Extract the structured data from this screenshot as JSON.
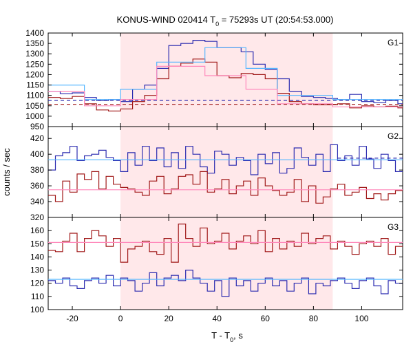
{
  "chart_data": {
    "type": "line",
    "title": "KONUS-WIND 020414 T",
    "title_sub": "0",
    "title_rest": " = 75293s UT (20:54:53.000)",
    "xlabel": "T - T",
    "xlabel_sub": "0",
    "xlabel_rest": ", s",
    "ylabel": "counts / sec",
    "xlim": [
      -30,
      117
    ],
    "xticks": [
      -20,
      0,
      20,
      40,
      60,
      80,
      100
    ],
    "highlight_interval": [
      0,
      88
    ],
    "colors": {
      "blue": "#2b2bb0",
      "red": "#a01818",
      "lightblue": "#55b6ff",
      "pink": "#ff88bb",
      "band": "#ffe8ea"
    },
    "panels": [
      {
        "label": "G1",
        "ylim": [
          950,
          1400
        ],
        "yticks": [
          950,
          1000,
          1050,
          1100,
          1150,
          1200,
          1250,
          1300,
          1350,
          1400
        ],
        "series": [
          {
            "color_key": "blue",
            "style": "step",
            "x": [
              -30,
              -25,
              -20,
              -15,
              -10,
              -5,
              0,
              5,
              10,
              15,
              20,
              25,
              30,
              35,
              40,
              45,
              50,
              55,
              60,
              65,
              70,
              75,
              80,
              85,
              90,
              95,
              100,
              105,
              110,
              115,
              117
            ],
            "y": [
              1120,
              1108,
              1112,
              1090,
              1075,
              1080,
              1070,
              1130,
              1150,
              1230,
              1340,
              1350,
              1365,
              1360,
              1330,
              1330,
              1310,
              1250,
              1225,
              1180,
              1120,
              1095,
              1090,
              1085,
              1080,
              1105,
              1070,
              1065,
              1075,
              1060,
              1060
            ]
          },
          {
            "color_key": "red",
            "style": "step",
            "x": [
              -30,
              -25,
              -20,
              -15,
              -10,
              -5,
              0,
              5,
              10,
              15,
              20,
              25,
              30,
              35,
              40,
              45,
              50,
              55,
              60,
              65,
              70,
              75,
              80,
              85,
              90,
              95,
              100,
              105,
              110,
              115,
              117
            ],
            "y": [
              1090,
              1085,
              1095,
              1060,
              1030,
              1025,
              1035,
              1070,
              1100,
              1180,
              1240,
              1255,
              1275,
              1260,
              1195,
              1185,
              1205,
              1200,
              1180,
              1110,
              1070,
              1060,
              1055,
              1055,
              1060,
              1040,
              1050,
              1045,
              1048,
              1040,
              1040
            ]
          },
          {
            "color_key": "lightblue",
            "style": "step",
            "x": [
              -30,
              -15,
              0,
              15,
              35,
              52,
              65,
              88,
              117
            ],
            "y": [
              1150,
              1080,
              1130,
              1260,
              1330,
              1230,
              1100,
              1080,
              1080
            ]
          },
          {
            "color_key": "pink",
            "style": "step",
            "x": [
              -30,
              -15,
              0,
              15,
              35,
              52,
              65,
              88,
              117
            ],
            "y": [
              1120,
              1050,
              1080,
              1240,
              1195,
              1130,
              1060,
              1045,
              1045
            ]
          },
          {
            "color_key": "blue",
            "style": "dashed",
            "x": [
              -30,
              117
            ],
            "y": [
              1076,
              1076
            ]
          },
          {
            "color_key": "red",
            "style": "dashed",
            "x": [
              -30,
              117
            ],
            "y": [
              1057,
              1057
            ]
          }
        ]
      },
      {
        "label": "G2",
        "ylim": [
          320,
          435
        ],
        "yticks": [
          320,
          340,
          360,
          380,
          400,
          420
        ],
        "series": [
          {
            "color_key": "blue",
            "style": "step",
            "x": [
              -30,
              -27,
              -24,
              -21,
              -18,
              -15,
              -12,
              -9,
              -6,
              -3,
              0,
              3,
              6,
              9,
              12,
              15,
              18,
              21,
              24,
              27,
              30,
              33,
              36,
              39,
              42,
              45,
              48,
              51,
              54,
              57,
              60,
              63,
              66,
              69,
              72,
              75,
              78,
              81,
              84,
              87,
              90,
              93,
              96,
              99,
              102,
              105,
              108,
              111,
              114,
              117
            ],
            "y": [
              380,
              398,
              402,
              410,
              392,
              398,
              400,
              405,
              396,
              392,
              378,
              402,
              386,
              410,
              392,
              408,
              384,
              402,
              382,
              410,
              400,
              384,
              376,
              404,
              400,
              386,
              396,
              392,
              374,
              400,
              388,
              402,
              376,
              382,
              408,
              396,
              386,
              400,
              378,
              412,
              392,
              398,
              386,
              410,
              394,
              382,
              400,
              392,
              378,
              388
            ]
          },
          {
            "color_key": "red",
            "style": "step",
            "x": [
              -30,
              -27,
              -24,
              -21,
              -18,
              -15,
              -12,
              -9,
              -6,
              -3,
              0,
              3,
              6,
              9,
              12,
              15,
              18,
              21,
              24,
              27,
              30,
              33,
              36,
              39,
              42,
              45,
              48,
              51,
              54,
              57,
              60,
              63,
              66,
              69,
              72,
              75,
              78,
              81,
              84,
              87,
              90,
              93,
              96,
              99,
              102,
              105,
              108,
              111,
              114,
              117
            ],
            "y": [
              348,
              340,
              366,
              352,
              375,
              368,
              378,
              356,
              372,
              362,
              358,
              356,
              352,
              348,
              366,
              372,
              350,
              356,
              372,
              374,
              362,
              378,
              352,
              356,
              368,
              350,
              360,
              366,
              348,
              370,
              360,
              354,
              348,
              352,
              368,
              340,
              360,
              338,
              346,
              356,
              362,
              348,
              352,
              358,
              344,
              350,
              342,
              350,
              354,
              352
            ]
          },
          {
            "color_key": "lightblue",
            "style": "line",
            "x": [
              -30,
              117
            ],
            "y": [
              393,
              393
            ]
          },
          {
            "color_key": "pink",
            "style": "line",
            "x": [
              -30,
              117
            ],
            "y": [
              355,
              355
            ]
          },
          {
            "color_key": "blue",
            "style": "dashed",
            "x": [
              90,
              117
            ],
            "y": [
              395,
              395
            ]
          }
        ]
      },
      {
        "label": "G3",
        "ylim": [
          100,
          170
        ],
        "yticks": [
          100,
          110,
          120,
          130,
          140,
          150,
          160
        ],
        "series": [
          {
            "color_key": "red",
            "style": "step",
            "x": [
              -30,
              -27,
              -24,
              -21,
              -18,
              -15,
              -12,
              -9,
              -6,
              -3,
              0,
              3,
              6,
              9,
              12,
              15,
              18,
              21,
              24,
              27,
              30,
              33,
              36,
              39,
              42,
              45,
              48,
              51,
              54,
              57,
              60,
              63,
              66,
              69,
              72,
              75,
              78,
              81,
              84,
              87,
              90,
              93,
              96,
              99,
              102,
              105,
              108,
              111,
              114,
              117
            ],
            "y": [
              145,
              144,
              152,
              158,
              144,
              154,
              160,
              156,
              148,
              154,
              136,
              146,
              148,
              152,
              144,
              142,
              154,
              136,
              165,
              154,
              148,
              162,
              150,
              152,
              158,
              146,
              152,
              156,
              150,
              160,
              144,
              154,
              146,
              152,
              148,
              158,
              150,
              154,
              156,
              146,
              152,
              148,
              142,
              150,
              152,
              148,
              154,
              142,
              148,
              146
            ]
          },
          {
            "color_key": "blue",
            "style": "step",
            "x": [
              -30,
              -27,
              -24,
              -21,
              -18,
              -15,
              -12,
              -9,
              -6,
              -3,
              0,
              3,
              6,
              9,
              12,
              15,
              18,
              21,
              24,
              27,
              30,
              33,
              36,
              39,
              42,
              45,
              48,
              51,
              54,
              57,
              60,
              63,
              66,
              69,
              72,
              75,
              78,
              81,
              84,
              87,
              90,
              93,
              96,
              99,
              102,
              105,
              108,
              111,
              114,
              117
            ],
            "y": [
              122,
              120,
              124,
              118,
              116,
              122,
              124,
              120,
              126,
              118,
              124,
              122,
              114,
              120,
              128,
              118,
              124,
              126,
              122,
              130,
              124,
              120,
              114,
              122,
              110,
              124,
              118,
              122,
              114,
              120,
              124,
              118,
              122,
              114,
              120,
              124,
              112,
              120,
              118,
              122,
              124,
              120,
              116,
              122,
              124,
              118,
              112,
              122,
              120,
              116
            ]
          },
          {
            "color_key": "pink",
            "style": "line",
            "x": [
              -30,
              117
            ],
            "y": [
              151,
              151
            ]
          },
          {
            "color_key": "lightblue",
            "style": "line",
            "x": [
              -30,
              117
            ],
            "y": [
              123,
              123
            ]
          }
        ]
      }
    ]
  }
}
